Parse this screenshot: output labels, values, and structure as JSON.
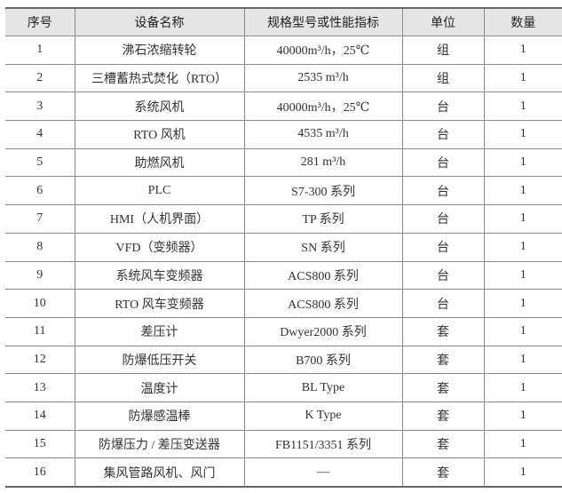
{
  "headers": [
    "序号",
    "设备名称",
    "规格型号或性能指标",
    "单位",
    "数量"
  ],
  "rows": [
    [
      "1",
      "沸石浓缩转轮",
      "40000m³/h，25℃",
      "组",
      "1"
    ],
    [
      "2",
      "三槽蓄热式焚化（RTO）",
      "2535 m³/h",
      "组",
      "1"
    ],
    [
      "3",
      "系统风机",
      "40000m³/h，25℃",
      "台",
      "1"
    ],
    [
      "4",
      "RTO 风机",
      "4535 m³/h",
      "台",
      "1"
    ],
    [
      "5",
      "助燃风机",
      "281 m³/h",
      "台",
      "1"
    ],
    [
      "6",
      "PLC",
      "S7-300 系列",
      "台",
      "1"
    ],
    [
      "7",
      "HMI（人机界面）",
      "TP 系列",
      "台",
      "1"
    ],
    [
      "8",
      "VFD（变频器）",
      "SN 系列",
      "台",
      "1"
    ],
    [
      "9",
      "系统风车变频器",
      "ACS800 系列",
      "台",
      "1"
    ],
    [
      "10",
      "RTO 风车变频器",
      "ACS800 系列",
      "台",
      "1"
    ],
    [
      "11",
      "差压计",
      "Dwyer2000 系列",
      "套",
      "1"
    ],
    [
      "12",
      "防爆低压开关",
      "B700 系列",
      "套",
      "1"
    ],
    [
      "13",
      "温度计",
      "BL  Type",
      "套",
      "1"
    ],
    [
      "14",
      "防爆感温棒",
      "K  Type",
      "套",
      "1"
    ],
    [
      "15",
      "防爆压力 / 差压变送器",
      "FB1151/3351 系列",
      "套",
      "1"
    ],
    [
      "16",
      "集风管路风机、风门",
      "—",
      "套",
      "1"
    ]
  ]
}
